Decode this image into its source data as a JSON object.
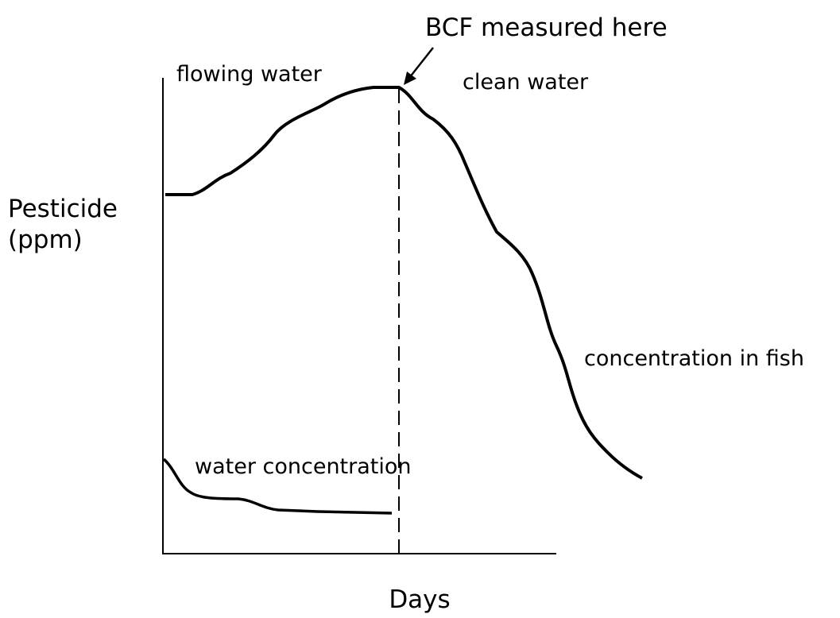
{
  "annotation": "BCF measured here",
  "regions": [
    "flowing water",
    "clean water"
  ],
  "y_axis_label": [
    "Pesticide",
    "(ppm)"
  ],
  "x_axis_label": "Days",
  "curves": [
    "concentration in fish",
    "water concentration"
  ]
}
